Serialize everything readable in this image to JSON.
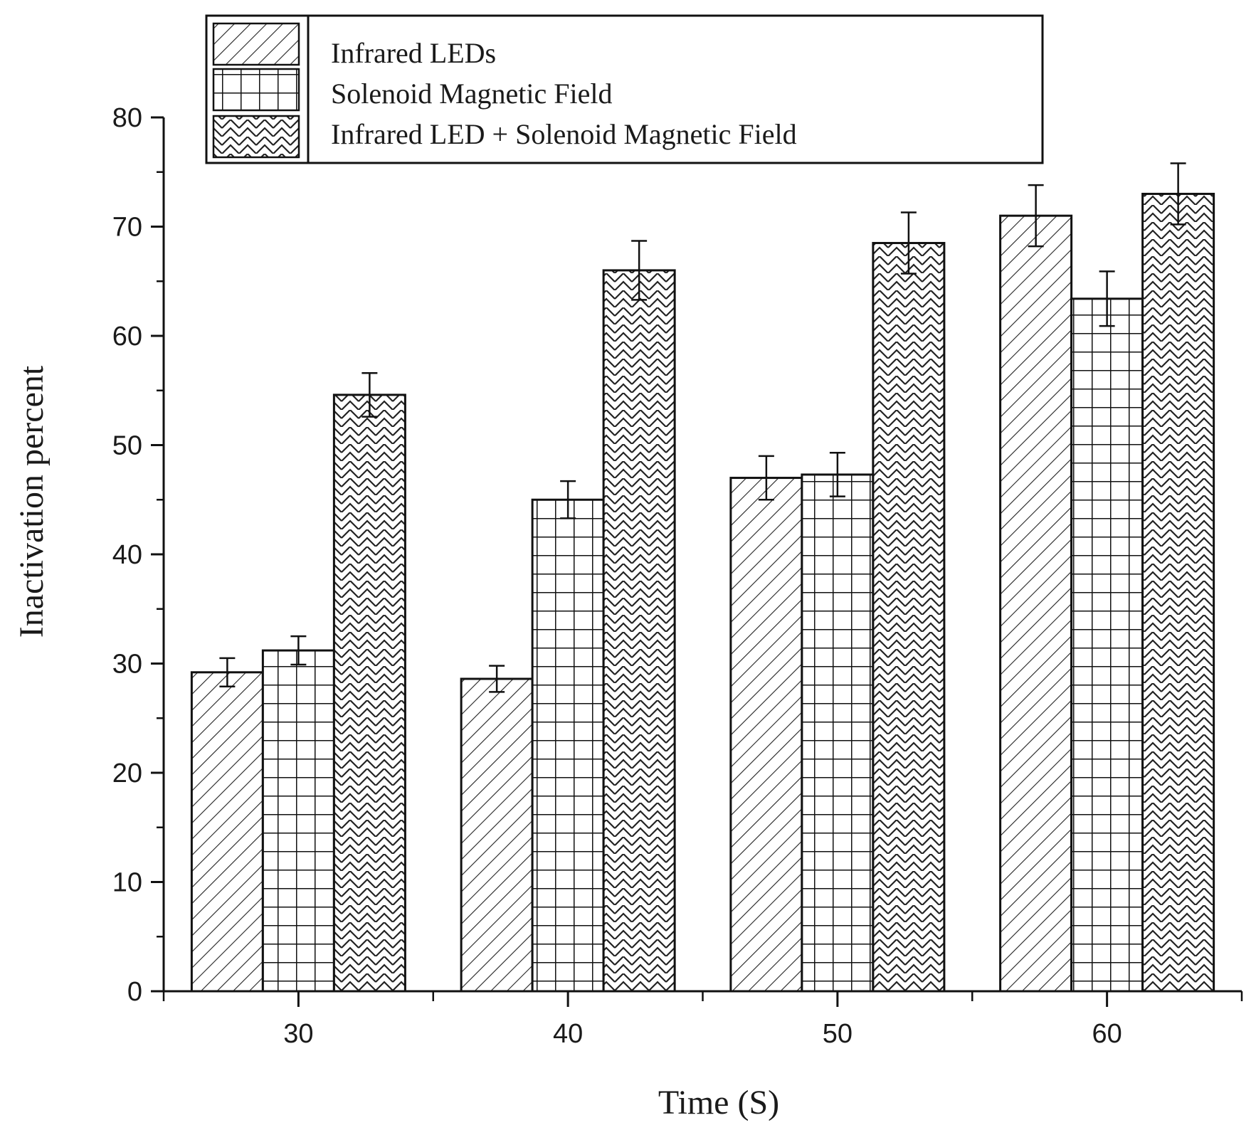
{
  "chart_data": {
    "type": "bar",
    "title": "",
    "xlabel": "Time (S)",
    "ylabel": "Inactivation percent",
    "categories": [
      "30",
      "40",
      "50",
      "60"
    ],
    "ylim": [
      0,
      80
    ],
    "yticks": [
      0,
      10,
      20,
      30,
      40,
      50,
      60,
      70,
      80
    ],
    "grid": false,
    "legend_position": "top",
    "series": [
      {
        "name": "Infrared LEDs",
        "pattern": "diagonal-hatch",
        "values": [
          29.2,
          28.6,
          47.0,
          71.0
        ],
        "errors": [
          1.3,
          1.2,
          2.0,
          2.8
        ]
      },
      {
        "name": "Solenoid Magnetic Field",
        "pattern": "grid-hatch",
        "values": [
          31.2,
          45.0,
          47.3,
          63.4
        ],
        "errors": [
          1.3,
          1.7,
          2.0,
          2.5
        ]
      },
      {
        "name": "Infrared LED + Solenoid Magnetic Field",
        "pattern": "zigzag-hatch",
        "values": [
          54.6,
          66.0,
          68.5,
          73.0
        ],
        "errors": [
          2.0,
          2.7,
          2.8,
          2.8
        ]
      }
    ]
  }
}
